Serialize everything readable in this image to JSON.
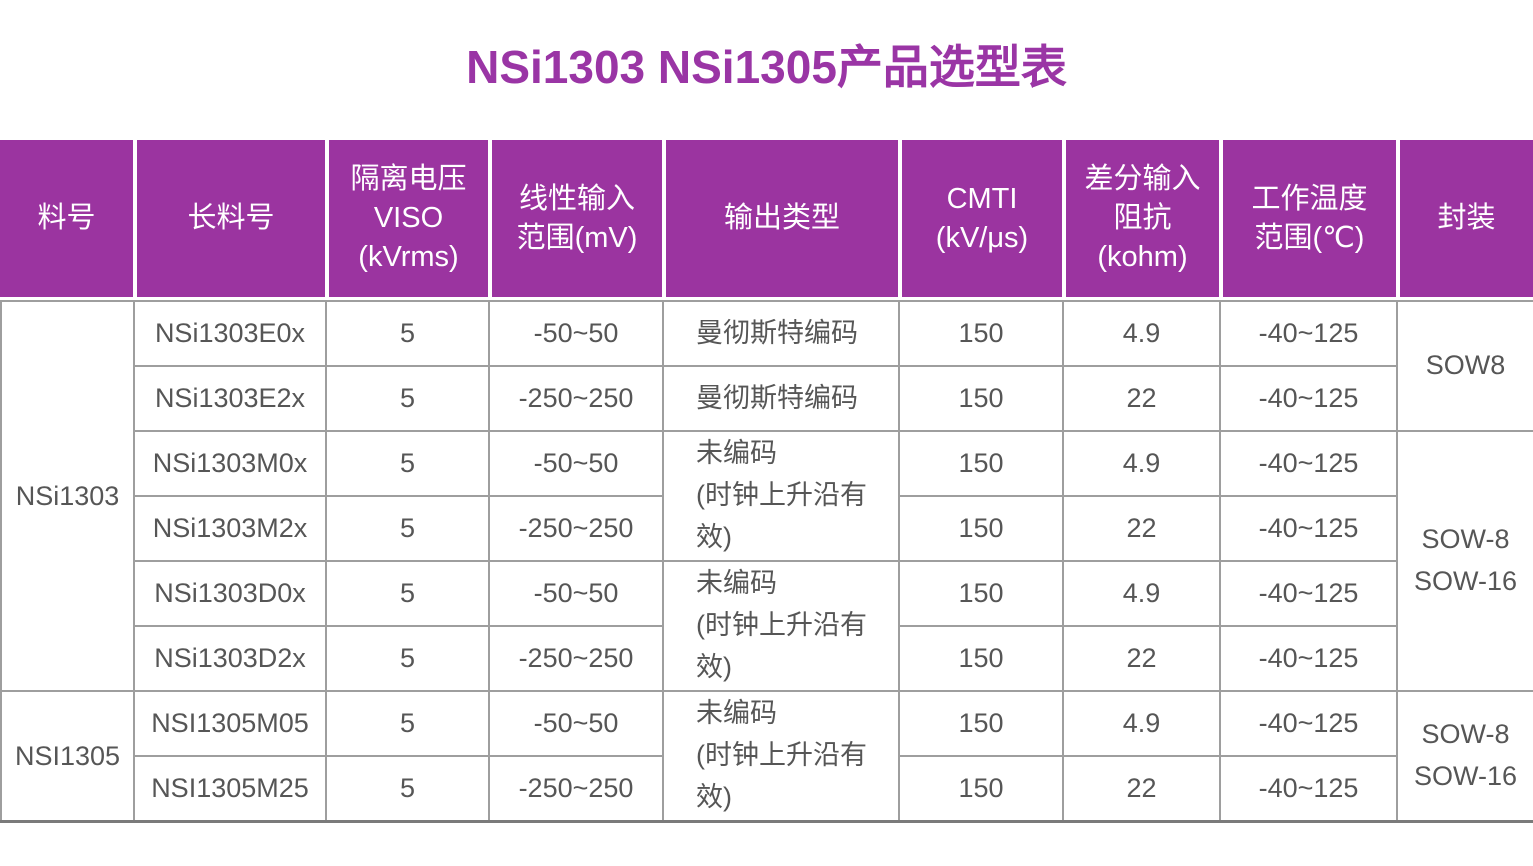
{
  "title": "NSi1303 NSi1305产品选型表",
  "colors": {
    "title_purple": "#9A35A5",
    "header_bg": "#9B34A0",
    "header_text": "#FFFFFF",
    "cell_text": "#565656",
    "grid_line": "#9E9E9E",
    "outer_line": "#7A7A7A"
  },
  "table": {
    "headers": [
      "料号",
      "长料号",
      "隔离电压\nVISO\n(kVrms)",
      "线性输入\n范围(mV)",
      "输出类型",
      "CMTI\n(kV/μs)",
      "差分输入\n阻抗\n(kohm)",
      "工作温度\n范围(℃)",
      "封装"
    ],
    "families": [
      {
        "name": "NSi1303"
      },
      {
        "name": "NSI1305"
      }
    ],
    "rows": [
      {
        "part": "NSi1303E0x",
        "viso": "5",
        "input_range": "-50~50",
        "cmti": "150",
        "impedance": "4.9",
        "temp": "-40~125"
      },
      {
        "part": "NSi1303E2x",
        "viso": "5",
        "input_range": "-250~250",
        "cmti": "150",
        "impedance": "22",
        "temp": "-40~125"
      },
      {
        "part": "NSi1303M0x",
        "viso": "5",
        "input_range": "-50~50",
        "cmti": "150",
        "impedance": "4.9",
        "temp": "-40~125"
      },
      {
        "part": "NSi1303M2x",
        "viso": "5",
        "input_range": "-250~250",
        "cmti": "150",
        "impedance": "22",
        "temp": "-40~125"
      },
      {
        "part": "NSi1303D0x",
        "viso": "5",
        "input_range": "-50~50",
        "cmti": "150",
        "impedance": "4.9",
        "temp": "-40~125"
      },
      {
        "part": "NSi1303D2x",
        "viso": "5",
        "input_range": "-250~250",
        "cmti": "150",
        "impedance": "22",
        "temp": "-40~125"
      },
      {
        "part": "NSI1305M05",
        "viso": "5",
        "input_range": "-50~50",
        "cmti": "150",
        "impedance": "4.9",
        "temp": "-40~125"
      },
      {
        "part": "NSI1305M25",
        "viso": "5",
        "input_range": "-250~250",
        "cmti": "150",
        "impedance": "22",
        "temp": "-40~125"
      }
    ],
    "output_cells": [
      {
        "label": "曼彻斯特编码"
      },
      {
        "label": "曼彻斯特编码"
      },
      {
        "label": "未编码\n(时钟上升沿有效)"
      },
      {
        "label": "未编码\n(时钟上升沿有效)"
      },
      {
        "label": "未编码\n(时钟上升沿有效)"
      }
    ],
    "package_cells": [
      {
        "label": "SOW8"
      },
      {
        "label": "SOW-8\nSOW-16"
      },
      {
        "label": "SOW-8\nSOW-16"
      }
    ]
  }
}
